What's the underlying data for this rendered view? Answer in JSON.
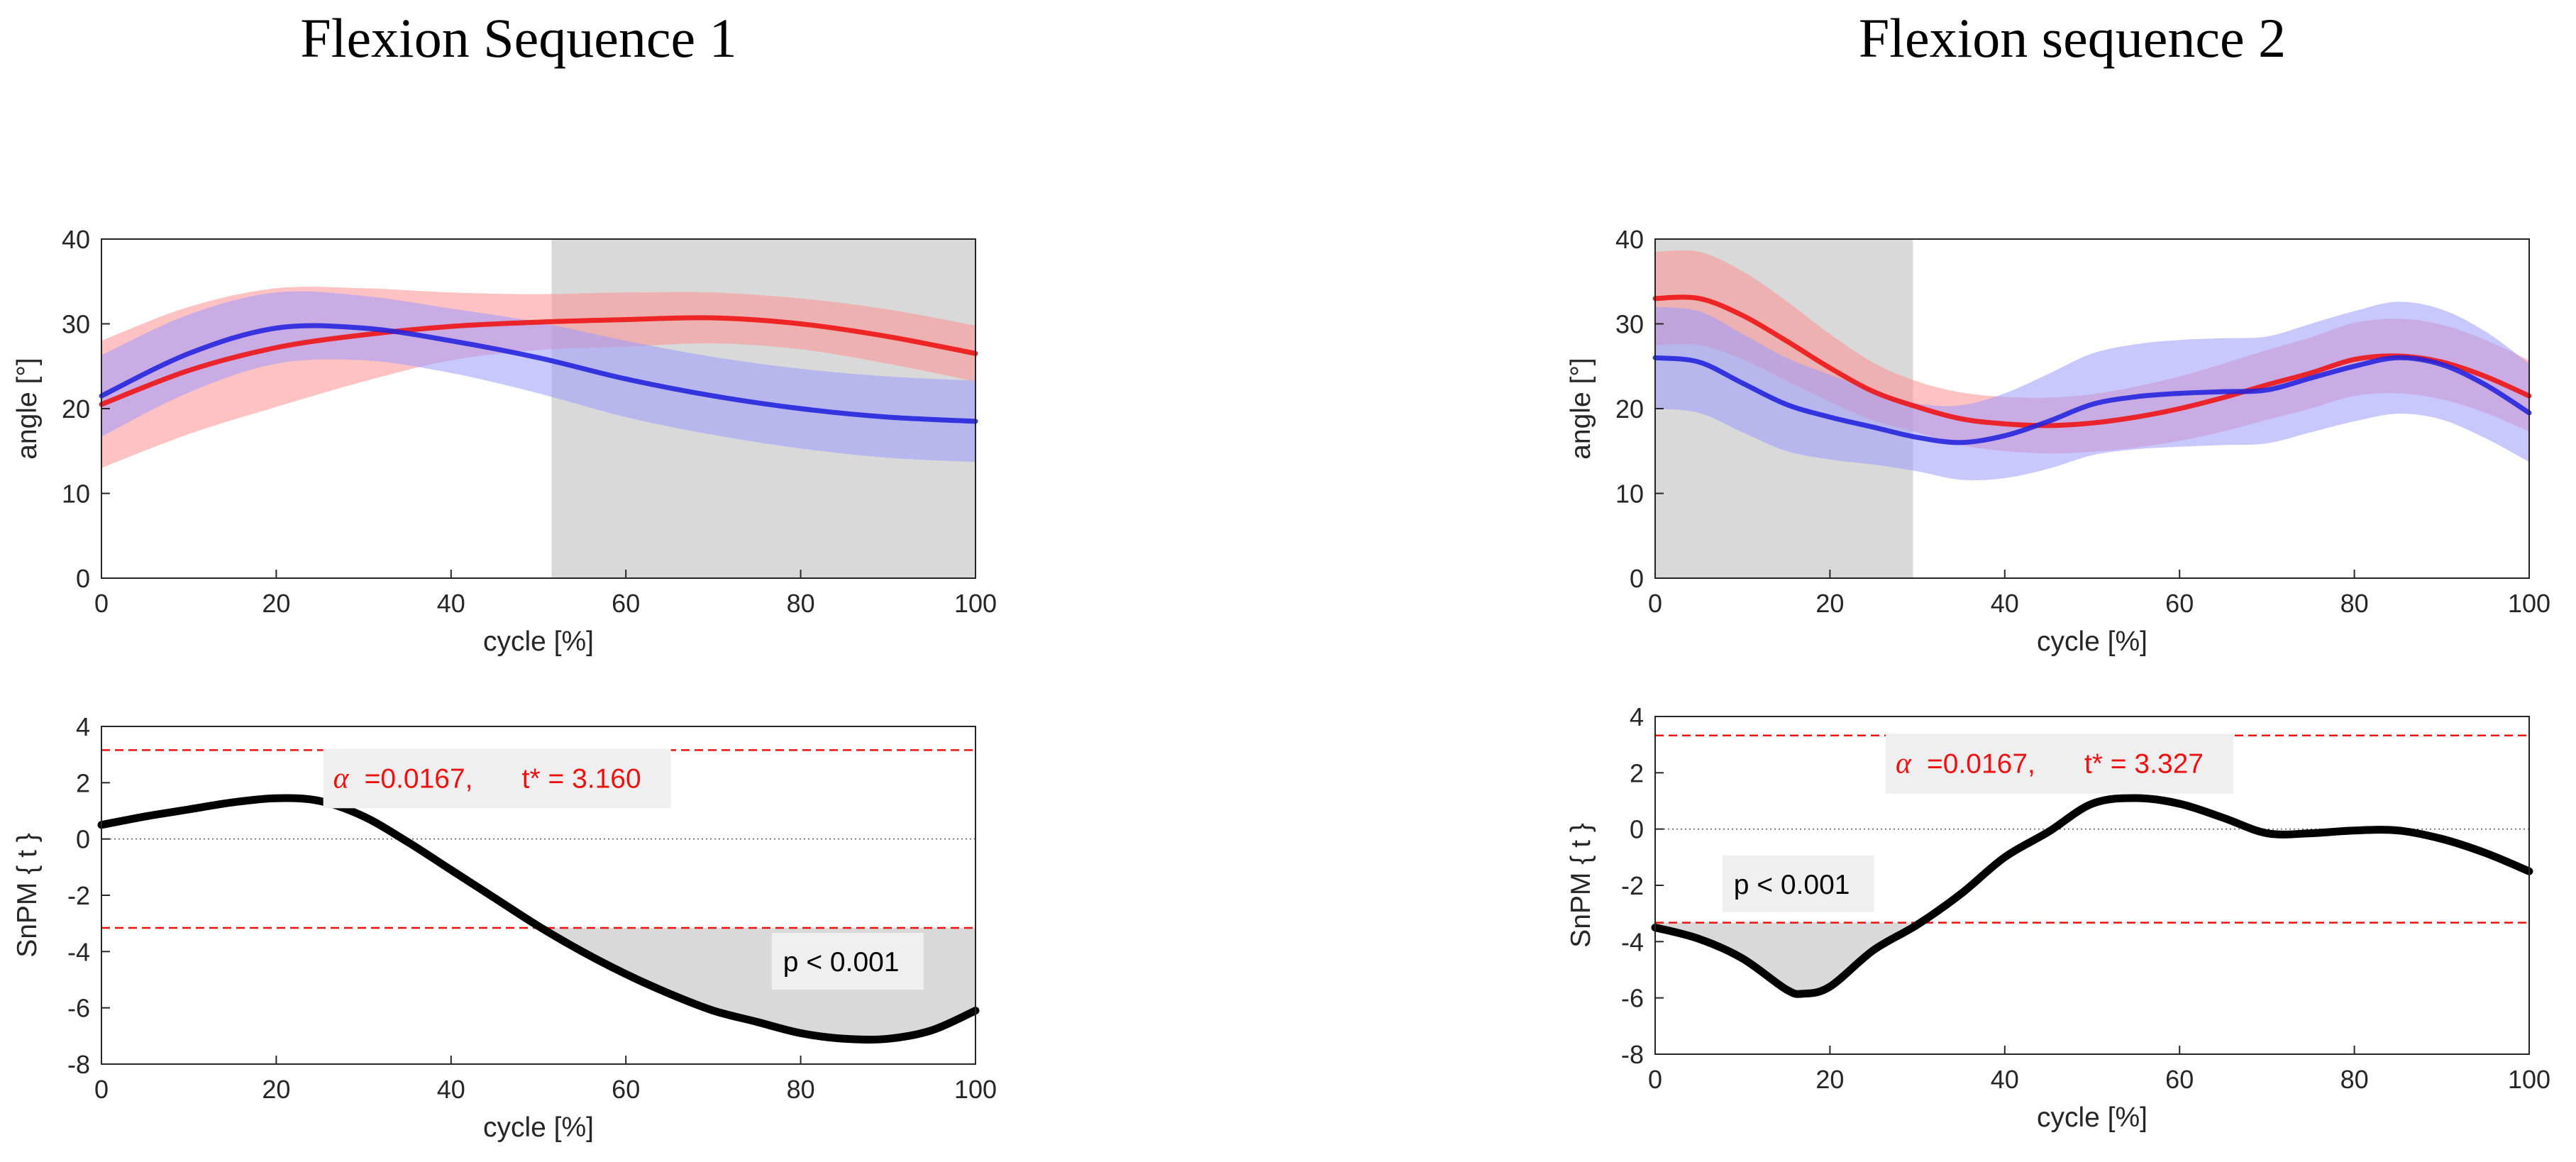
{
  "columns": [
    {
      "title": "Flexion Sequence 1",
      "angle_plot": {
        "type": "line",
        "xlabel": "cycle [%]",
        "ylabel": "angle [°]",
        "xlim": [
          0,
          100
        ],
        "ylim": [
          0,
          40
        ],
        "xticks": [
          "0",
          "20",
          "40",
          "60",
          "80",
          "100"
        ],
        "yticks": [
          "0",
          "10",
          "20",
          "30",
          "40"
        ],
        "shaded_region": [
          51.5,
          100
        ],
        "colors": {
          "red": "#ee1111",
          "blue": "#2222dd",
          "red_band": "#ff8f8f",
          "blue_band": "#9a9aff",
          "shade": "#d9d9d9"
        },
        "x": [
          0,
          10,
          20,
          30,
          40,
          50,
          60,
          70,
          80,
          90,
          100
        ],
        "series": [
          {
            "name": "red",
            "values": [
              20.5,
              24.5,
              27.2,
              28.7,
              29.7,
              30.2,
              30.5,
              30.7,
              30.0,
              28.5,
              26.5
            ],
            "sd": [
              7.5,
              7.5,
              7.0,
              5.5,
              4.0,
              3.3,
              3.2,
              3.0,
              3.0,
              3.2,
              3.3
            ]
          },
          {
            "name": "blue",
            "values": [
              21.5,
              26.5,
              29.5,
              29.5,
              28.0,
              26.0,
              23.5,
              21.5,
              20.0,
              19.0,
              18.5
            ],
            "sd": [
              4.8,
              4.6,
              4.2,
              3.8,
              3.8,
              4.2,
              4.5,
              4.6,
              4.7,
              4.8,
              4.8
            ]
          }
        ]
      },
      "spm_plot": {
        "type": "line",
        "xlabel": "cycle [%]",
        "ylabel": "SnPM { t }",
        "xlim": [
          0,
          100
        ],
        "ylim": [
          -8,
          4
        ],
        "xticks": [
          "0",
          "20",
          "40",
          "60",
          "80",
          "100"
        ],
        "yticks": [
          "-8",
          "-6",
          "-4",
          "-2",
          "0",
          "2",
          "4"
        ],
        "threshold": 3.16,
        "alpha_symbol": "α",
        "alpha_text": "=0.0167,",
        "tstar_text": "t* = 3.160",
        "p_text": "p < 0.001",
        "cluster_side": "below",
        "x": [
          0,
          5,
          10,
          15,
          20,
          25,
          30,
          35,
          40,
          45,
          50,
          55,
          60,
          65,
          70,
          75,
          80,
          85,
          90,
          95,
          100
        ],
        "values": [
          0.5,
          0.8,
          1.05,
          1.3,
          1.45,
          1.35,
          0.8,
          -0.1,
          -1.1,
          -2.1,
          -3.1,
          -4.0,
          -4.8,
          -5.5,
          -6.1,
          -6.5,
          -6.9,
          -7.1,
          -7.1,
          -6.8,
          -6.1
        ]
      }
    },
    {
      "title": "Flexion sequence 2",
      "angle_plot": {
        "type": "line",
        "xlabel": "cycle [%]",
        "ylabel": "angle [°]",
        "xlim": [
          0,
          100
        ],
        "ylim": [
          0,
          40
        ],
        "xticks": [
          "0",
          "20",
          "40",
          "60",
          "80",
          "100"
        ],
        "yticks": [
          "0",
          "10",
          "20",
          "30",
          "40"
        ],
        "shaded_region": [
          0,
          29.5
        ],
        "colors": {
          "red": "#ee1111",
          "blue": "#2222dd",
          "red_band": "#ff8f8f",
          "blue_band": "#9a9aff",
          "shade": "#d9d9d9"
        },
        "x": [
          0,
          5,
          10,
          15,
          20,
          25,
          30,
          35,
          40,
          45,
          50,
          55,
          60,
          65,
          70,
          75,
          80,
          85,
          90,
          95,
          100
        ],
        "series": [
          {
            "name": "red",
            "values": [
              33.0,
              33.0,
              31.0,
              28.0,
              24.8,
              22.0,
              20.2,
              18.8,
              18.2,
              18.0,
              18.3,
              19.0,
              20.0,
              21.3,
              22.8,
              24.2,
              25.8,
              26.2,
              25.5,
              23.8,
              21.5
            ],
            "sd": [
              5.5,
              5.5,
              5.2,
              4.7,
              4.0,
              3.4,
              3.0,
              3.1,
              3.2,
              3.3,
              3.4,
              3.6,
              3.8,
              4.0,
              4.1,
              4.2,
              4.3,
              4.4,
              4.4,
              4.3,
              4.2
            ]
          },
          {
            "name": "blue",
            "values": [
              26.0,
              25.5,
              23.0,
              20.5,
              19.0,
              17.8,
              16.6,
              16.0,
              16.8,
              18.5,
              20.5,
              21.4,
              21.8,
              22.0,
              22.2,
              23.6,
              25.0,
              26.0,
              25.2,
              22.8,
              19.5
            ],
            "sd": [
              6.0,
              6.0,
              5.8,
              5.5,
              5.0,
              4.4,
              4.0,
              4.4,
              5.0,
              5.6,
              6.0,
              6.2,
              6.3,
              6.3,
              6.3,
              6.4,
              6.5,
              6.6,
              6.5,
              6.3,
              5.8
            ]
          }
        ]
      },
      "spm_plot": {
        "type": "line",
        "xlabel": "cycle [%]",
        "ylabel": "SnPM { t }",
        "xlim": [
          0,
          100
        ],
        "ylim": [
          -8,
          4
        ],
        "xticks": [
          "0",
          "20",
          "40",
          "60",
          "80",
          "100"
        ],
        "yticks": [
          "-8",
          "-6",
          "-4",
          "-2",
          "0",
          "2",
          "4"
        ],
        "threshold": 3.327,
        "alpha_symbol": "α",
        "alpha_text": "=0.0167,",
        "tstar_text": "t* = 3.327",
        "p_text": "p < 0.001",
        "cluster_side": "below",
        "x": [
          0,
          5,
          10,
          15,
          17,
          20,
          25,
          30,
          35,
          40,
          45,
          50,
          55,
          60,
          65,
          70,
          75,
          80,
          85,
          90,
          95,
          100
        ],
        "values": [
          -3.5,
          -3.9,
          -4.6,
          -5.7,
          -5.85,
          -5.6,
          -4.3,
          -3.4,
          -2.3,
          -1.0,
          -0.1,
          0.9,
          1.1,
          0.9,
          0.4,
          -0.15,
          -0.15,
          -0.05,
          -0.05,
          -0.35,
          -0.85,
          -1.5
        ]
      }
    }
  ]
}
